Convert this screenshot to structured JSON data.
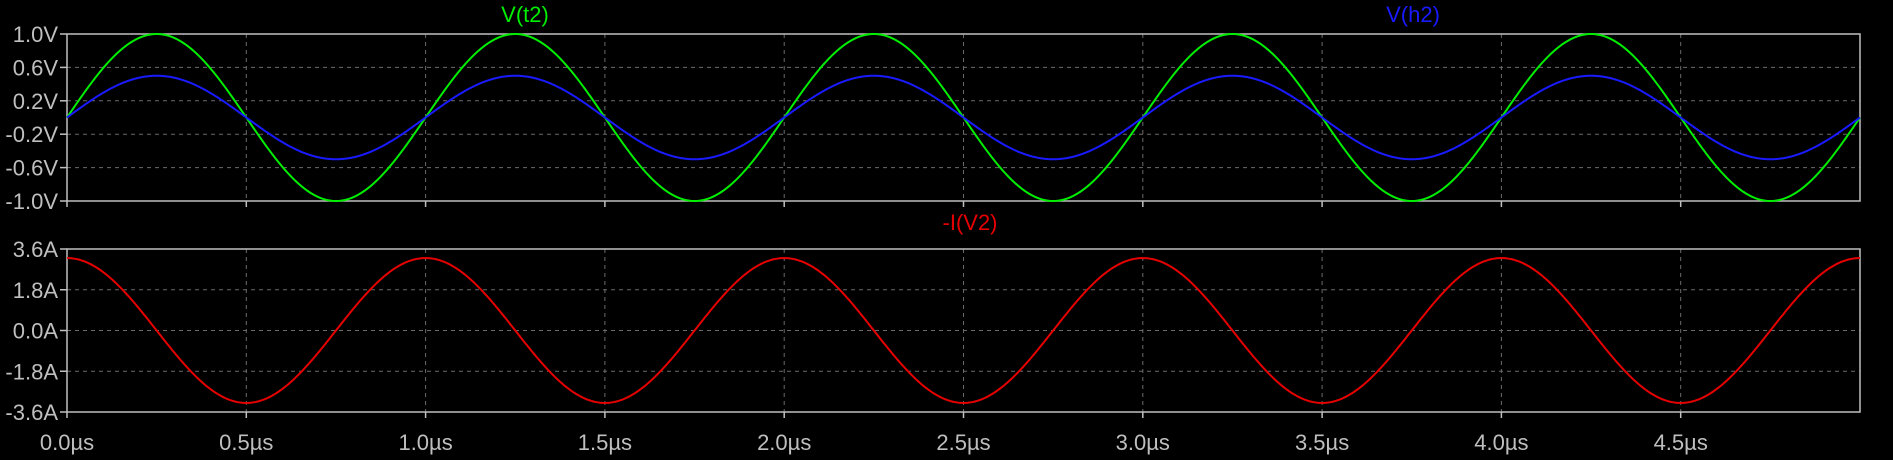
{
  "chart_data": [
    {
      "type": "line",
      "pane": "top",
      "xlim": [
        0,
        5.0
      ],
      "x_tick_values": [
        0.0,
        0.5,
        1.0,
        1.5,
        2.0,
        2.5,
        3.0,
        3.5,
        4.0,
        4.5
      ],
      "ylim": [
        -1.0,
        1.0
      ],
      "y_ticks": [
        {
          "value": 1.0,
          "label": "1.0V"
        },
        {
          "value": 0.6,
          "label": "0.6V"
        },
        {
          "value": 0.2,
          "label": "0.2V"
        },
        {
          "value": -0.2,
          "label": "-0.2V"
        },
        {
          "value": -0.6,
          "label": "-0.6V"
        },
        {
          "value": -1.0,
          "label": "-1.0V"
        }
      ],
      "grid": true,
      "series": [
        {
          "name": "V(t2)",
          "color": "#00ee00",
          "function": "sine",
          "amplitude": 1.0,
          "period": 1.0,
          "phase_deg": 0,
          "offset": 0
        },
        {
          "name": "V(h2)",
          "color": "#1a1aff",
          "function": "sine",
          "amplitude": 0.5,
          "period": 1.0,
          "phase_deg": 0,
          "offset": 0
        }
      ]
    },
    {
      "type": "line",
      "pane": "bottom",
      "xlim": [
        0,
        5.0
      ],
      "x_tick_values": [
        0.0,
        0.5,
        1.0,
        1.5,
        2.0,
        2.5,
        3.0,
        3.5,
        4.0,
        4.5
      ],
      "x_tick_labels": [
        "0.0µs",
        "0.5µs",
        "1.0µs",
        "1.5µs",
        "2.0µs",
        "2.5µs",
        "3.0µs",
        "3.5µs",
        "4.0µs",
        "4.5µs"
      ],
      "ylim": [
        -3.6,
        3.6
      ],
      "y_ticks": [
        {
          "value": 3.6,
          "label": "3.6A"
        },
        {
          "value": 1.8,
          "label": "1.8A"
        },
        {
          "value": 0.0,
          "label": "0.0A"
        },
        {
          "value": -1.8,
          "label": "-1.8A"
        },
        {
          "value": -3.6,
          "label": "-3.6A"
        }
      ],
      "grid": true,
      "series": [
        {
          "name": "-I(V2)",
          "color": "#e60000",
          "function": "sine",
          "amplitude": 3.2,
          "period": 1.0,
          "phase_deg": 90,
          "offset": 0
        }
      ]
    }
  ]
}
